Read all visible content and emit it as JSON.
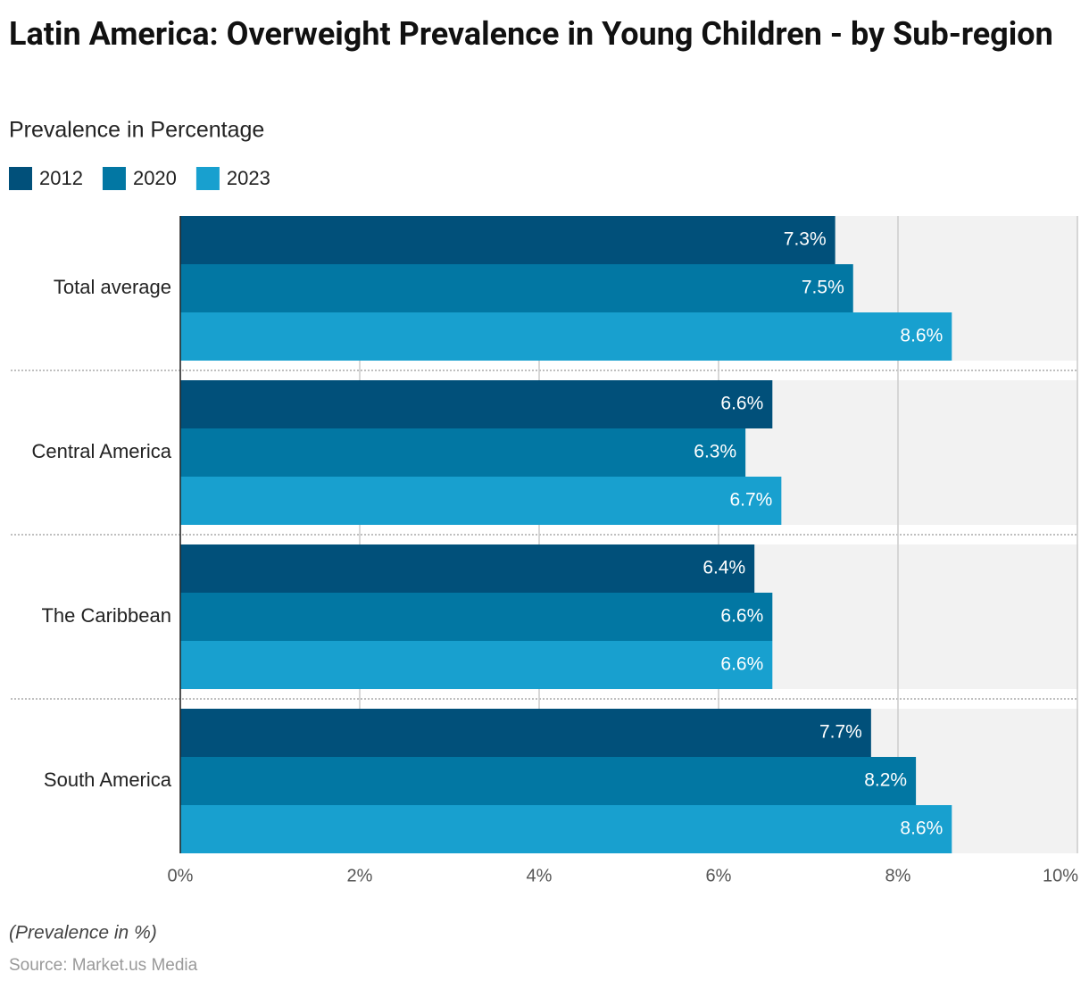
{
  "chart_data": {
    "type": "bar",
    "orientation": "horizontal",
    "title": "Latin America: Overweight Prevalence in Young Children - by Sub-region",
    "subtitle": "Prevalence in Percentage",
    "categories": [
      "Total average",
      "Central America",
      "The Caribbean",
      "South America"
    ],
    "series": [
      {
        "name": "2012",
        "color": "#01507a",
        "values": [
          7.3,
          6.6,
          6.4,
          7.7
        ],
        "value_labels": [
          "7.3%",
          "6.6%",
          "6.4%",
          "7.7%"
        ]
      },
      {
        "name": "2020",
        "color": "#0277a3",
        "values": [
          7.5,
          6.3,
          6.6,
          8.2
        ],
        "value_labels": [
          "7.5%",
          "6.3%",
          "6.6%",
          "8.2%"
        ]
      },
      {
        "name": "2023",
        "color": "#18a0cf",
        "values": [
          8.6,
          6.7,
          6.6,
          8.6
        ],
        "value_labels": [
          "8.6%",
          "6.7%",
          "6.6%",
          "8.6%"
        ]
      }
    ],
    "xlim": [
      0,
      10
    ],
    "xticks": [
      {
        "value": 0,
        "label": "0%"
      },
      {
        "value": 2,
        "label": "2%"
      },
      {
        "value": 4,
        "label": "4%"
      },
      {
        "value": 6,
        "label": "6%"
      },
      {
        "value": 8,
        "label": "8%"
      },
      {
        "value": 10,
        "label": "10%"
      }
    ],
    "grid": true,
    "note": "(Prevalence in %)",
    "source": "Source: Market.us Media"
  }
}
